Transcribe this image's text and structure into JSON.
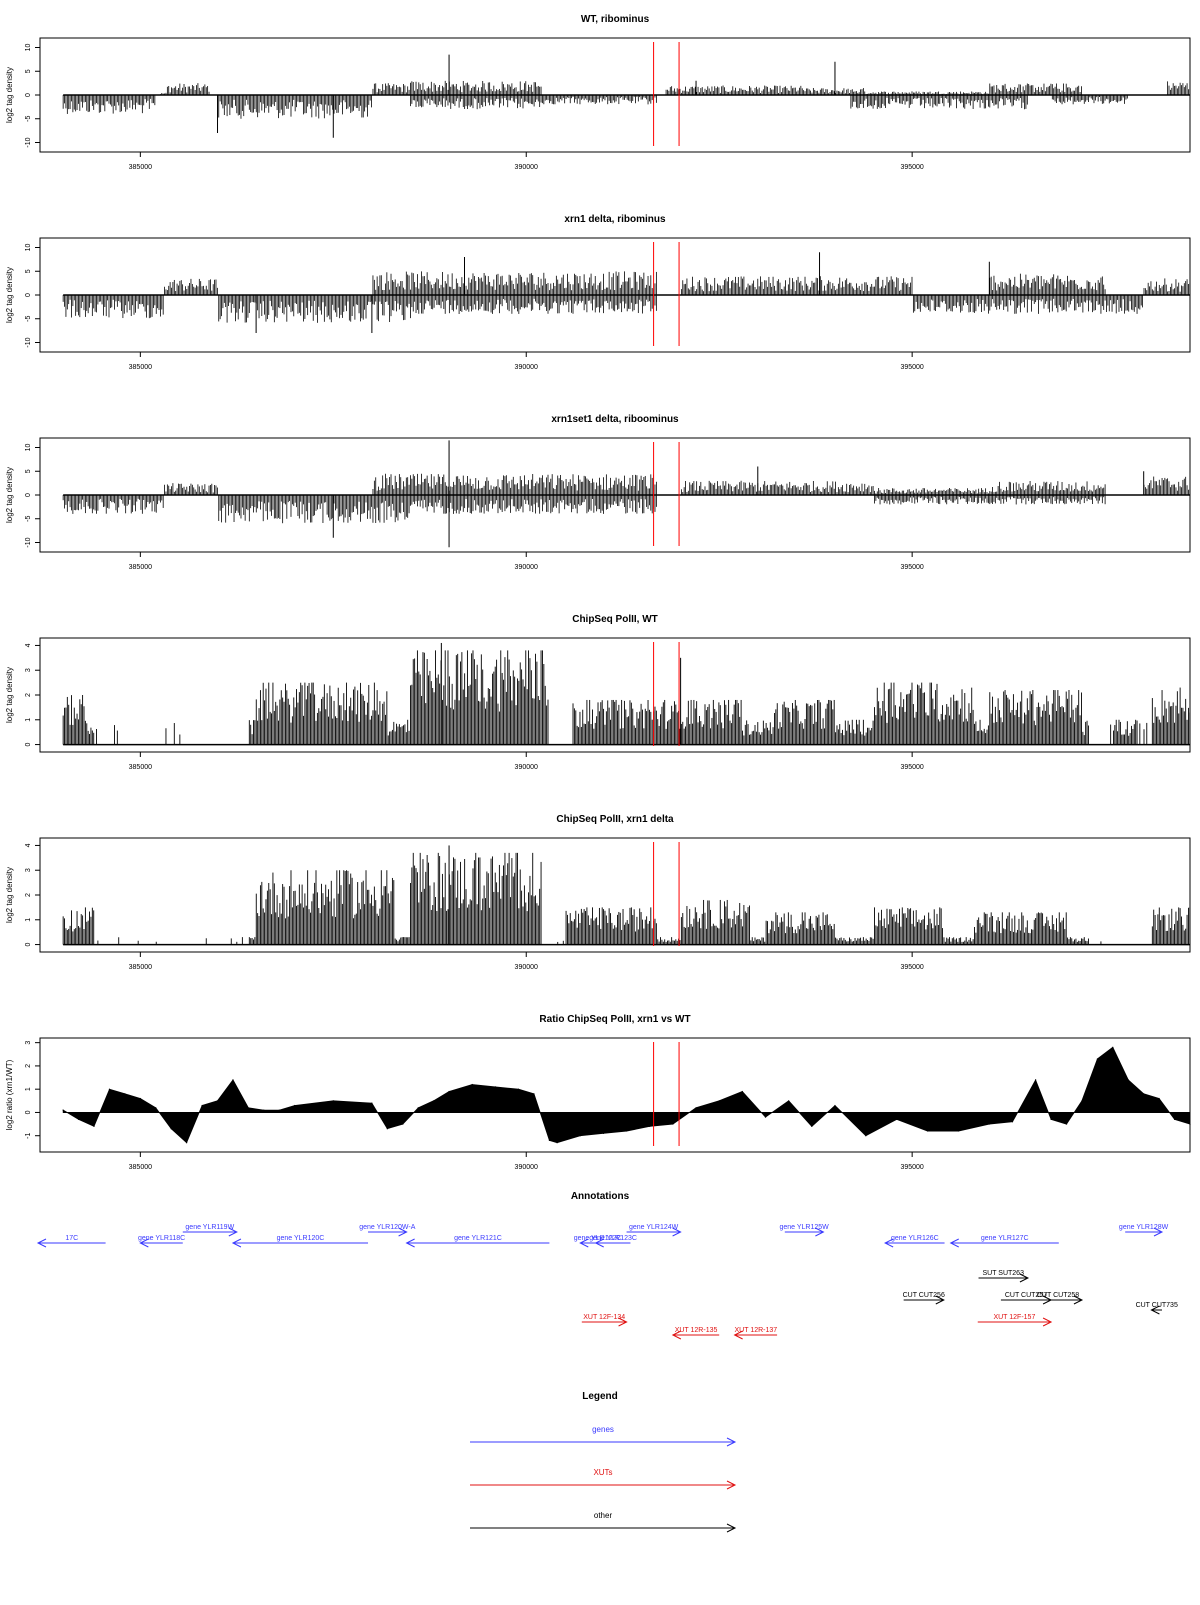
{
  "chart_data": [
    {
      "type": "bar",
      "title": "WT, ribominus",
      "ylabel": "log2 tag density",
      "xlabel": "",
      "xlim": [
        383700,
        398600
      ],
      "ylim": [
        -12,
        12
      ],
      "yticks": [
        -10,
        -5,
        0,
        5,
        10
      ],
      "xticks": [
        385000,
        390000,
        395000
      ],
      "markers": [
        391650,
        391980
      ],
      "regions_pos": [
        [
          385250,
          385350,
          0.5
        ],
        [
          385350,
          385900,
          2.5
        ],
        [
          388000,
          388500,
          2.5
        ],
        [
          388500,
          390200,
          3.0
        ],
        [
          391800,
          393600,
          2.0
        ],
        [
          393600,
          394400,
          1.5
        ],
        [
          394400,
          396000,
          0.8
        ],
        [
          396000,
          397200,
          2.5
        ],
        [
          398300,
          398600,
          3.0
        ]
      ],
      "regions_neg": [
        [
          384000,
          385200,
          -4
        ],
        [
          386000,
          388000,
          -5
        ],
        [
          388500,
          390200,
          -3
        ],
        [
          390200,
          391700,
          -2
        ],
        [
          394200,
          396500,
          -3
        ],
        [
          396800,
          397800,
          -2
        ]
      ],
      "peaks": [
        [
          386000,
          -8
        ],
        [
          387500,
          -9
        ],
        [
          389000,
          8.5
        ],
        [
          392200,
          3
        ],
        [
          394000,
          7
        ]
      ]
    },
    {
      "type": "bar",
      "title": "xrn1 delta, ribominus",
      "ylabel": "log2 tag density",
      "xlabel": "",
      "xlim": [
        383700,
        398600
      ],
      "ylim": [
        -12,
        12
      ],
      "yticks": [
        -10,
        -5,
        0,
        5,
        10
      ],
      "xticks": [
        385000,
        390000,
        395000
      ],
      "markers": [
        391650,
        391980
      ],
      "regions_pos": [
        [
          385300,
          386000,
          3.5
        ],
        [
          388000,
          391700,
          5.0
        ],
        [
          392000,
          395000,
          4.0
        ],
        [
          396000,
          397500,
          4.5
        ],
        [
          398000,
          398600,
          3.5
        ]
      ],
      "regions_neg": [
        [
          384000,
          385300,
          -5
        ],
        [
          386000,
          388500,
          -6
        ],
        [
          388500,
          391700,
          -4
        ],
        [
          395000,
          398000,
          -4
        ]
      ],
      "peaks": [
        [
          386500,
          -8
        ],
        [
          388000,
          -8
        ],
        [
          389200,
          8
        ],
        [
          393800,
          9
        ],
        [
          396000,
          7
        ]
      ]
    },
    {
      "type": "bar",
      "title": "xrn1set1 delta, riboominus",
      "ylabel": "log2 tag density",
      "xlabel": "",
      "xlim": [
        383700,
        398600
      ],
      "ylim": [
        -12,
        12
      ],
      "yticks": [
        -10,
        -5,
        0,
        5,
        10
      ],
      "xticks": [
        385000,
        390000,
        395000
      ],
      "markers": [
        391650,
        391980
      ],
      "regions_pos": [
        [
          385300,
          386000,
          2.5
        ],
        [
          388000,
          391700,
          4.5
        ],
        [
          392000,
          394500,
          3.0
        ],
        [
          394500,
          396000,
          1.5
        ],
        [
          396000,
          397500,
          3.0
        ],
        [
          398000,
          398600,
          4.0
        ]
      ],
      "regions_neg": [
        [
          384000,
          385300,
          -4
        ],
        [
          386000,
          388500,
          -6
        ],
        [
          388500,
          391700,
          -4
        ],
        [
          394500,
          397500,
          -2
        ]
      ],
      "peaks": [
        [
          389000,
          11.5
        ],
        [
          389000,
          -11
        ],
        [
          387500,
          -9
        ],
        [
          393000,
          6
        ],
        [
          398000,
          5
        ]
      ]
    },
    {
      "type": "bar",
      "title": "ChipSeq PolII, WT",
      "ylabel": "log2 tag density",
      "xlabel": "",
      "xlim": [
        383700,
        398600
      ],
      "ylim": [
        -0.3,
        4.3
      ],
      "yticks": [
        0,
        1,
        2,
        3,
        4
      ],
      "xticks": [
        385000,
        390000,
        395000
      ],
      "markers": [
        391650,
        391980
      ],
      "baseline": 1,
      "regions_pos": [
        [
          384000,
          384300,
          2.0
        ],
        [
          386500,
          388200,
          2.5
        ],
        [
          388500,
          390300,
          3.8
        ],
        [
          390600,
          392800,
          1.8
        ],
        [
          393200,
          394000,
          1.8
        ],
        [
          394500,
          395800,
          2.5
        ],
        [
          396000,
          397200,
          2.2
        ],
        [
          397700,
          397900,
          1.0
        ],
        [
          398100,
          398600,
          2.3
        ]
      ],
      "gaps": [
        [
          384400,
          386400
        ],
        [
          390300,
          390600
        ],
        [
          397300,
          397600
        ],
        [
          397900,
          398100
        ]
      ],
      "peaks": [
        [
          388900,
          4.1
        ],
        [
          392000,
          3.5
        ]
      ]
    },
    {
      "type": "bar",
      "title": "ChipSeq PolII, xrn1 delta",
      "ylabel": "log2 tag density",
      "xlabel": "",
      "xlim": [
        383700,
        398600
      ],
      "ylim": [
        -0.3,
        4.3
      ],
      "yticks": [
        0,
        1,
        2,
        3,
        4
      ],
      "xticks": [
        385000,
        390000,
        395000
      ],
      "markers": [
        391650,
        391980
      ],
      "baseline": 0.3,
      "regions_pos": [
        [
          384000,
          384400,
          1.5
        ],
        [
          386500,
          388300,
          3.0
        ],
        [
          388500,
          390200,
          3.7
        ],
        [
          390500,
          391700,
          1.5
        ],
        [
          392000,
          392900,
          1.8
        ],
        [
          393100,
          394000,
          1.3
        ],
        [
          394500,
          395400,
          1.5
        ],
        [
          395800,
          397000,
          1.3
        ],
        [
          398100,
          398600,
          1.5
        ]
      ],
      "gaps": [
        [
          384400,
          386400
        ],
        [
          390200,
          390500
        ],
        [
          397300,
          398100
        ]
      ],
      "peaks": [
        [
          389000,
          4.0
        ]
      ]
    },
    {
      "type": "area",
      "title": "Ratio ChipSeq PolII, xrn1 vs WT",
      "ylabel": "log2 ratio (xrn1/WT)",
      "xlabel": "",
      "xlim": [
        383700,
        398600
      ],
      "ylim": [
        -1.7,
        3.2
      ],
      "yticks": [
        -1,
        0,
        1,
        2,
        3
      ],
      "xticks": [
        385000,
        390000,
        395000
      ],
      "markers": [
        391650,
        391980
      ],
      "x": [
        384000,
        384200,
        384400,
        384600,
        384800,
        385000,
        385200,
        385400,
        385600,
        385800,
        386000,
        386200,
        386400,
        386600,
        386800,
        387000,
        387500,
        388000,
        388200,
        388400,
        388600,
        388800,
        389000,
        389300,
        389600,
        389900,
        390100,
        390300,
        390400,
        390700,
        391000,
        391300,
        391600,
        391900,
        392200,
        392500,
        392800,
        393100,
        393400,
        393700,
        394000,
        394400,
        394800,
        395200,
        395600,
        396000,
        396300,
        396600,
        396800,
        397000,
        397200,
        397400,
        397600,
        397800,
        398000,
        398200,
        398400,
        398600
      ],
      "y": [
        0.1,
        -0.3,
        -0.6,
        1.0,
        0.8,
        0.6,
        0.2,
        -0.7,
        -1.3,
        0.3,
        0.5,
        1.4,
        0.2,
        0.1,
        0.1,
        0.3,
        0.5,
        0.4,
        -0.7,
        -0.5,
        0.2,
        0.5,
        0.9,
        1.2,
        1.1,
        1.0,
        0.8,
        -1.2,
        -1.3,
        -1.0,
        -0.9,
        -0.8,
        -0.6,
        -0.5,
        0.2,
        0.5,
        0.9,
        -0.2,
        0.5,
        -0.6,
        0.3,
        -1.0,
        -0.3,
        -0.8,
        -0.8,
        -0.5,
        -0.4,
        1.4,
        -0.3,
        -0.5,
        0.5,
        2.3,
        2.8,
        1.4,
        0.8,
        0.6,
        -0.3,
        -0.5
      ]
    }
  ],
  "annotations": {
    "title": "Annotations",
    "items": [
      {
        "label": "17C",
        "kind": "gene",
        "x1": 383300,
        "x2": 384550,
        "row": 1,
        "dir": "left"
      },
      {
        "label": "gene YLR118C",
        "kind": "gene",
        "x1": 385000,
        "x2": 385550,
        "row": 1,
        "dir": "left"
      },
      {
        "label": "gene YLR119W",
        "kind": "gene",
        "x1": 385550,
        "x2": 386250,
        "row": 0,
        "dir": "right"
      },
      {
        "label": "gene YLR120C",
        "kind": "gene",
        "x1": 386200,
        "x2": 387950,
        "row": 1,
        "dir": "left"
      },
      {
        "label": "gene YLR120W-A",
        "kind": "gene",
        "x1": 387950,
        "x2": 388450,
        "row": 0,
        "dir": "right"
      },
      {
        "label": "gene YLR121C",
        "kind": "gene",
        "x1": 388450,
        "x2": 390300,
        "row": 1,
        "dir": "left"
      },
      {
        "label": "gene YLR122C",
        "kind": "gene",
        "x1": 390700,
        "x2": 391150,
        "row": 1,
        "dir": "left"
      },
      {
        "label": "gene YLR123C",
        "kind": "gene",
        "x1": 390900,
        "x2": 391350,
        "row": 1,
        "dir": "left"
      },
      {
        "label": "gene YLR124W",
        "kind": "gene",
        "x1": 391300,
        "x2": 392000,
        "row": 0,
        "dir": "right"
      },
      {
        "label": "gene YLR125W",
        "kind": "gene",
        "x1": 393350,
        "x2": 393850,
        "row": 0,
        "dir": "right"
      },
      {
        "label": "gene YLR126C",
        "kind": "gene",
        "x1": 394650,
        "x2": 395420,
        "row": 1,
        "dir": "left"
      },
      {
        "label": "gene YLR127C",
        "kind": "gene",
        "x1": 395500,
        "x2": 396900,
        "row": 1,
        "dir": "left"
      },
      {
        "label": "gene YLR128W",
        "kind": "gene",
        "x1": 397760,
        "x2": 398710,
        "row": 0,
        "dir": "right"
      },
      {
        "label": "SUT SUT263",
        "kind": "other",
        "x1": 395860,
        "x2": 396500,
        "row": 2,
        "dir": "right"
      },
      {
        "label": "CUT CUT256",
        "kind": "other",
        "x1": 394890,
        "x2": 395410,
        "row": 3,
        "dir": "right"
      },
      {
        "label": "CUT CUT257",
        "kind": "other",
        "x1": 396150,
        "x2": 396800,
        "row": 3,
        "dir": "right"
      },
      {
        "label": "CUT CUT258",
        "kind": "other",
        "x1": 396580,
        "x2": 397200,
        "row": 3,
        "dir": "right"
      },
      {
        "label": "CUT CUT735",
        "kind": "other",
        "x1": 398100,
        "x2": 398700,
        "row": 4,
        "dir": "left"
      },
      {
        "label": "XUT 12F-134",
        "kind": "XUT",
        "x1": 390720,
        "x2": 391300,
        "row": 5,
        "dir": "right"
      },
      {
        "label": "XUT 12R-135",
        "kind": "XUT",
        "x1": 391900,
        "x2": 392500,
        "row": 6,
        "dir": "left"
      },
      {
        "label": "XUT 12R-137",
        "kind": "XUT",
        "x1": 392700,
        "x2": 393250,
        "row": 6,
        "dir": "left"
      },
      {
        "label": "XUT 12F-157",
        "kind": "XUT",
        "x1": 395850,
        "x2": 396800,
        "row": 5,
        "dir": "right"
      }
    ]
  },
  "legend": {
    "title": "Legend",
    "items": [
      {
        "label": "genes",
        "kind": "gene"
      },
      {
        "label": "XUTs",
        "kind": "XUT"
      },
      {
        "label": "other",
        "kind": "other"
      }
    ]
  },
  "colors": {
    "gene": "#3a3aff",
    "XUT": "#e01010",
    "other": "#000000",
    "marker": "#ff0000",
    "bars": "#000000"
  }
}
